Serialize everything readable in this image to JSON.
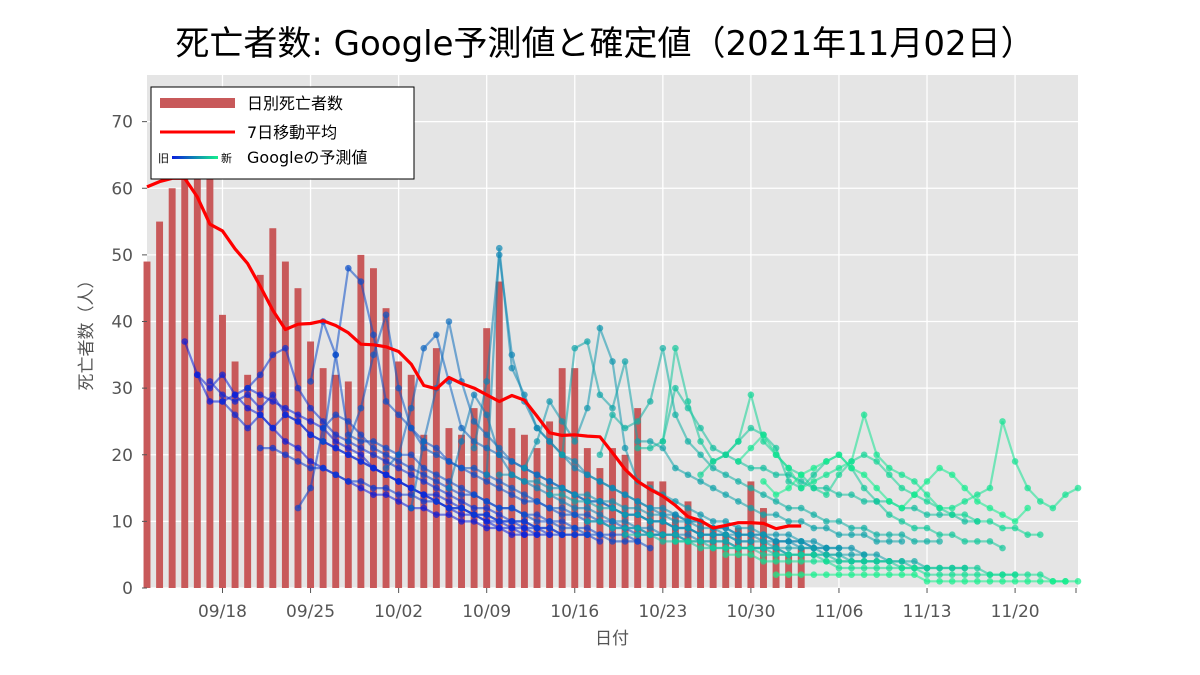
{
  "chart_data": {
    "type": "bar",
    "title": "死亡者数: Google予測値と確定値（2021年11月02日）",
    "xlabel": "日付",
    "ylabel": "死亡者数（人）",
    "ylim": [
      0,
      77
    ],
    "xlim": [
      "2021-09-12",
      "2021-11-25"
    ],
    "x_ticks": [
      "09/18",
      "09/25",
      "10/02",
      "10/09",
      "10/16",
      "10/23",
      "10/30",
      "11/06",
      "11/13",
      "11/20"
    ],
    "y_ticks": [
      0,
      10,
      20,
      30,
      40,
      50,
      60,
      70
    ],
    "grid": true,
    "legend_position": "top-left",
    "legend": {
      "bar": "日別死亡者数",
      "ma": "7日移動平均",
      "forecast": "Googleの予測値",
      "forecast_old": "旧",
      "forecast_new": "新"
    },
    "colors": {
      "bar": "#c8595a",
      "ma": "#ff0000",
      "forecast_old": "#0a1edc",
      "forecast_new": "#14f08c",
      "plot_bg": "#e5e5e5",
      "grid": "#ffffff"
    },
    "daily_deaths": {
      "start": "2021-09-12",
      "values": [
        49,
        55,
        60,
        64,
        62,
        63,
        41,
        34,
        32,
        47,
        54,
        49,
        45,
        37,
        33,
        32,
        31,
        50,
        48,
        42,
        34,
        32,
        23,
        36,
        24,
        23,
        27,
        39,
        46,
        24,
        23,
        21,
        25,
        33,
        33,
        21,
        18,
        21,
        20,
        27,
        16,
        16,
        11,
        13,
        10,
        9,
        8,
        9,
        16,
        12,
        7,
        5,
        6
      ]
    },
    "moving_average_7d": {
      "start": "2021-09-12",
      "values": [
        60.2,
        61,
        61.5,
        61.5,
        58.7,
        54.6,
        53.6,
        50.9,
        48.7,
        45.3,
        41.7,
        38.8,
        39.6,
        39.7,
        40.1,
        39.4,
        38.3,
        36.6,
        36.5,
        36.2,
        35.5,
        33.6,
        30.4,
        29.9,
        31.6,
        30.7,
        30.0,
        29.0,
        28.0,
        28.9,
        28.2,
        25.8,
        23.3,
        22.9,
        23.0,
        22.8,
        22.7,
        20.3,
        17.8,
        16.0,
        14.8,
        13.8,
        12.4,
        10.7,
        10.1,
        9.0,
        9.4,
        9.8,
        9.8,
        9.7,
        8.9,
        9.3,
        9.3
      ]
    },
    "forecast_series": [
      {
        "start": "2021-09-15",
        "values": [
          37,
          32,
          28,
          28,
          29,
          27,
          26,
          24,
          22,
          21,
          19,
          18,
          17,
          16,
          15,
          14,
          14,
          13,
          12,
          12,
          11,
          11,
          10,
          10,
          9,
          9,
          8,
          8
        ]
      },
      {
        "start": "2021-09-16",
        "values": [
          32,
          30,
          32,
          29,
          30,
          29,
          28,
          27,
          26,
          25,
          24,
          22,
          21,
          20,
          18,
          17,
          16,
          15,
          14,
          13,
          12,
          11,
          11,
          10,
          9,
          9,
          8,
          8
        ]
      },
      {
        "start": "2021-09-17",
        "values": [
          31,
          29,
          28,
          29,
          27,
          29,
          26,
          25,
          23,
          22,
          21,
          20,
          19,
          18,
          17,
          16,
          15,
          14,
          13,
          12,
          12,
          11,
          10,
          10,
          9,
          9,
          8,
          8
        ]
      },
      {
        "start": "2021-09-18",
        "values": [
          28,
          26,
          24,
          26,
          24,
          26,
          25,
          23,
          22,
          21,
          20,
          19,
          18,
          17,
          16,
          15,
          14,
          14,
          13,
          12,
          11,
          11,
          10,
          10,
          9,
          9,
          8,
          8
        ]
      },
      {
        "start": "2021-09-20",
        "values": [
          30,
          32,
          35,
          36,
          30,
          27,
          25,
          23,
          22,
          21,
          20,
          19,
          18,
          17,
          16,
          15,
          14,
          13,
          12,
          12,
          11,
          10,
          10,
          9,
          9,
          8,
          8,
          8
        ]
      },
      {
        "start": "2021-09-21",
        "values": [
          21,
          21,
          20,
          19,
          18,
          18,
          17,
          16,
          16,
          15,
          15,
          14,
          14,
          13,
          13,
          12,
          12,
          11,
          11,
          10,
          10,
          10,
          9,
          9,
          8,
          8,
          8,
          7
        ]
      },
      {
        "start": "2021-09-24",
        "values": [
          12,
          15,
          24,
          26,
          25,
          23,
          21,
          20,
          19,
          18,
          17,
          16,
          15,
          14,
          14,
          13,
          12,
          12,
          11,
          11,
          10,
          10,
          9,
          9,
          8,
          8,
          8,
          7
        ]
      },
      {
        "start": "2021-09-25",
        "values": [
          31,
          40,
          35,
          23,
          22,
          22,
          21,
          20,
          20,
          18,
          17,
          16,
          15,
          14,
          13,
          12,
          12,
          11,
          10,
          10,
          9,
          9,
          8,
          8,
          7,
          7,
          7,
          6
        ]
      },
      {
        "start": "2021-09-26",
        "values": [
          22,
          35,
          48,
          46,
          38,
          28,
          26,
          24,
          22,
          21,
          19,
          18,
          17,
          16,
          15,
          14,
          13,
          13,
          12,
          11,
          11,
          10,
          10,
          9,
          9,
          8,
          8,
          8
        ]
      },
      {
        "start": "2021-09-28",
        "values": [
          22,
          27,
          35,
          41,
          30,
          24,
          21,
          20,
          19,
          18,
          18,
          17,
          16,
          15,
          14,
          13,
          12,
          12,
          11,
          11,
          10,
          10,
          9,
          9,
          8,
          8,
          8,
          7
        ]
      },
      {
        "start": "2021-10-01",
        "values": [
          18,
          20,
          27,
          36,
          38,
          31,
          24,
          22,
          21,
          20,
          19,
          18,
          17,
          16,
          15,
          14,
          13,
          13,
          12,
          11,
          11,
          10,
          10,
          9,
          9,
          8,
          8,
          8
        ]
      },
      {
        "start": "2021-10-03",
        "values": [
          12,
          22,
          30,
          40,
          31,
          25,
          23,
          21,
          19,
          18,
          17,
          16,
          15,
          14,
          13,
          13,
          12,
          11,
          11,
          10,
          10,
          9,
          9,
          8,
          8,
          8,
          7,
          7
        ]
      },
      {
        "start": "2021-10-06",
        "values": [
          15,
          22,
          29,
          26,
          20,
          17,
          16,
          15,
          14,
          13,
          12,
          12,
          11,
          10,
          10,
          9,
          9,
          8,
          8,
          8,
          7,
          7,
          7,
          6,
          6,
          6,
          6,
          5
        ]
      },
      {
        "start": "2021-10-08",
        "values": [
          21,
          31,
          50,
          35,
          28,
          24,
          22,
          20,
          18,
          17,
          16,
          15,
          14,
          13,
          12,
          11,
          11,
          10,
          10,
          9,
          9,
          8,
          8,
          8,
          7,
          7,
          7,
          6
        ]
      },
      {
        "start": "2021-10-09",
        "values": [
          17,
          51,
          33,
          29,
          24,
          22,
          20,
          19,
          17,
          16,
          15,
          14,
          13,
          12,
          12,
          11,
          10,
          10,
          9,
          9,
          8,
          8,
          8,
          7,
          7,
          7,
          6,
          6
        ]
      },
      {
        "start": "2021-10-12",
        "values": [
          18,
          22,
          28,
          25,
          22,
          27,
          39,
          34,
          21,
          16,
          15,
          14,
          13,
          12,
          11,
          10,
          10,
          9,
          9,
          8,
          8,
          8,
          7,
          7,
          6,
          6,
          6,
          5
        ]
      },
      {
        "start": "2021-10-15",
        "values": [
          20,
          36,
          37,
          29,
          27,
          34,
          22,
          22,
          21,
          18,
          17,
          16,
          15,
          14,
          13,
          12,
          11,
          11,
          10,
          10,
          9,
          9,
          8,
          8,
          8,
          7,
          7,
          7
        ]
      },
      {
        "start": "2021-10-18",
        "values": [
          20,
          26,
          24,
          25,
          28,
          36,
          26,
          22,
          20,
          18,
          17,
          16,
          15,
          14,
          13,
          12,
          12,
          11,
          10,
          10,
          9,
          9,
          8,
          8,
          8,
          7,
          7,
          7
        ]
      },
      {
        "start": "2021-10-21",
        "values": [
          21,
          21,
          22,
          30,
          27,
          24,
          21,
          20,
          19,
          18,
          18,
          17,
          17,
          16,
          15,
          15,
          14,
          14,
          13,
          13,
          13,
          12,
          12,
          11,
          11,
          11,
          10,
          10
        ]
      },
      {
        "start": "2021-10-23",
        "values": [
          22,
          36,
          28,
          22,
          19,
          20,
          22,
          24,
          23,
          21,
          16,
          15,
          17,
          19,
          20,
          18,
          15,
          13,
          11,
          10,
          9,
          9,
          8,
          8,
          7,
          7,
          7,
          6
        ]
      },
      {
        "start": "2021-10-26",
        "values": [
          17,
          19,
          20,
          22,
          29,
          22,
          20,
          18,
          17,
          15,
          14,
          17,
          19,
          20,
          19,
          17,
          15,
          14,
          13,
          12,
          11,
          11,
          10,
          10,
          9,
          9,
          8,
          8
        ]
      },
      {
        "start": "2021-10-29",
        "values": [
          19,
          21,
          23,
          20,
          18,
          15,
          16,
          17,
          18,
          19,
          26,
          20,
          18,
          17,
          16,
          14,
          12,
          12,
          13,
          14,
          15,
          25,
          19,
          15,
          13,
          12,
          14,
          15,
          18,
          17
        ]
      },
      {
        "start": "2021-10-31",
        "values": [
          16,
          14,
          15,
          17,
          18,
          19,
          20,
          18,
          17,
          15,
          13,
          12,
          14,
          16,
          18,
          17,
          15,
          13,
          12,
          11,
          10,
          12
        ]
      },
      {
        "start": "2021-10-10",
        "values": [
          17,
          17,
          16,
          16,
          15,
          15,
          14,
          14,
          13,
          13,
          12,
          12,
          11,
          11,
          10,
          10,
          9,
          9,
          8,
          8,
          8,
          7,
          7,
          7,
          6,
          6,
          6,
          6
        ]
      },
      {
        "start": "2021-10-14",
        "values": [
          14,
          14,
          13,
          13,
          12,
          12,
          11,
          11,
          10,
          10,
          9,
          9,
          8,
          8,
          8,
          7,
          7,
          7,
          6,
          6,
          6,
          6,
          5,
          5,
          5,
          5,
          5,
          4
        ]
      },
      {
        "start": "2021-10-17",
        "values": [
          10,
          10,
          9,
          9,
          9,
          8,
          8,
          8,
          7,
          7,
          7,
          7,
          6,
          6,
          6,
          6,
          5,
          5,
          5,
          5,
          5,
          4,
          4,
          4,
          4,
          4,
          4,
          3
        ]
      },
      {
        "start": "2021-10-20",
        "values": [
          8,
          8,
          8,
          7,
          7,
          7,
          7,
          6,
          6,
          6,
          6,
          6,
          5,
          5,
          5,
          5,
          5,
          4,
          4,
          4,
          4,
          4,
          4,
          3,
          3,
          3,
          3,
          3
        ]
      },
      {
        "start": "2021-10-24",
        "values": [
          7,
          7,
          6,
          6,
          6,
          6,
          6,
          5,
          5,
          5,
          5,
          5,
          4,
          4,
          4,
          4,
          4,
          4,
          3,
          3,
          3,
          3,
          3,
          3,
          3,
          2,
          2,
          2
        ]
      },
      {
        "start": "2021-10-28",
        "values": [
          5,
          5,
          5,
          4,
          4,
          4,
          4,
          4,
          4,
          3,
          3,
          3,
          3,
          3,
          3,
          3,
          2,
          2,
          2,
          2,
          2,
          2,
          2,
          2,
          2,
          2,
          1,
          1
        ]
      },
      {
        "start": "2021-11-01",
        "values": [
          2,
          2,
          2,
          2,
          2,
          2,
          2,
          2,
          2,
          2,
          2,
          2,
          1,
          1,
          1,
          1,
          1,
          1,
          1,
          1,
          1,
          1,
          1,
          1,
          1
        ]
      }
    ]
  }
}
